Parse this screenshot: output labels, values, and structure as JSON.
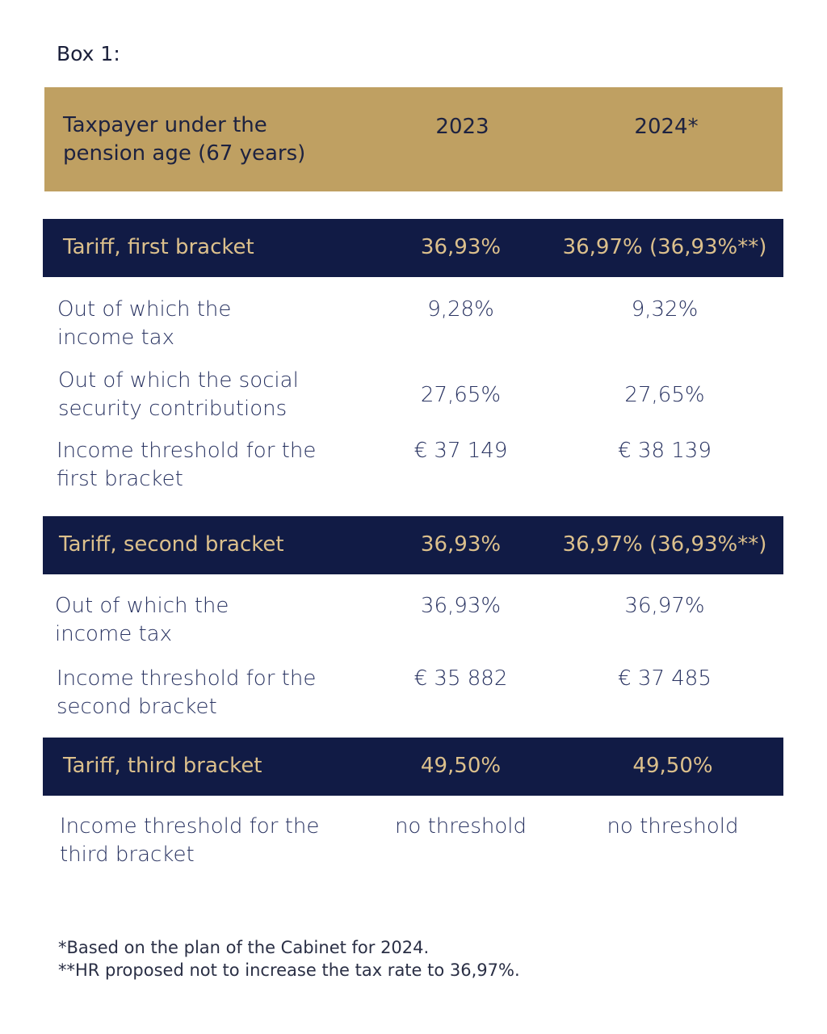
{
  "title": "Box 1:",
  "header": {
    "label": "Taxpayer under the pension age (67 years)",
    "col_2023": "2023",
    "col_2024": "2024*"
  },
  "sections": [
    {
      "band": {
        "label": "Tariff, first bracket",
        "v2023": "36,93%",
        "v2024": "36,97% (36,93%**)"
      },
      "rows": [
        {
          "label": "Out of which the income tax",
          "v2023": "9,28%",
          "v2024": "9,32%"
        },
        {
          "label": "Out of which the social security contributions",
          "v2023": "27,65%",
          "v2024": "27,65%"
        },
        {
          "label": "Income threshold for the first bracket",
          "v2023": "€ 37 149",
          "v2024": "€ 38 139"
        }
      ]
    },
    {
      "band": {
        "label": "Tariff, second bracket",
        "v2023": "36,93%",
        "v2024": "36,97% (36,93%**)"
      },
      "rows": [
        {
          "label": "Out of which the income tax",
          "v2023": "36,93%",
          "v2024": "36,97%"
        },
        {
          "label": "Income threshold for the second bracket",
          "v2023": "€ 35 882",
          "v2024": "€ 37 485"
        }
      ]
    },
    {
      "band": {
        "label": "Tariff, third bracket",
        "v2023": "49,50%",
        "v2024": "49,50%"
      },
      "rows": [
        {
          "label": "Income threshold for the third bracket",
          "v2023": "no threshold",
          "v2024": "no threshold"
        }
      ]
    }
  ],
  "footnotes": [
    "*Based on the plan of the Cabinet for 2024.",
    "**HR proposed not to increase the tax rate to 36,97%."
  ],
  "colors": {
    "gold": "#bfa062",
    "navy": "#111b45",
    "gold_text": "#dcc08c",
    "text": "#2a3462"
  }
}
